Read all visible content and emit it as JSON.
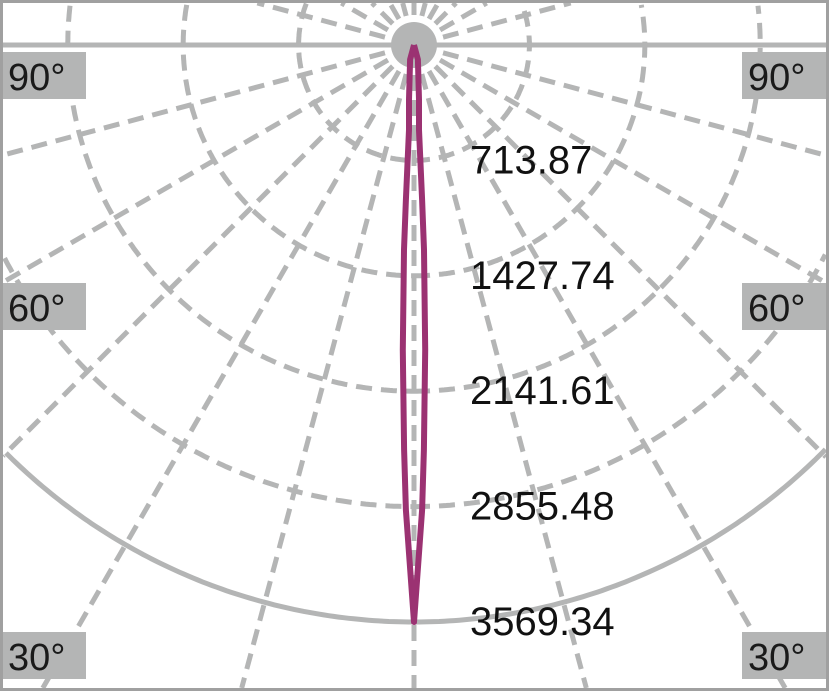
{
  "chart_data": {
    "type": "polar-line",
    "title": "",
    "radial_ticks": [
      713.87,
      1427.74,
      2141.61,
      2855.48,
      3569.34
    ],
    "radial_tick_labels": [
      "713.87",
      "1427.74",
      "2141.61",
      "2855.48",
      "3569.34"
    ],
    "rmax": 3569.34,
    "angle_labels": {
      "left": [
        "90°",
        "60°",
        "30°"
      ],
      "right": [
        "90°",
        "60°",
        "30°"
      ]
    },
    "angle_grid_step_deg": 15,
    "grid": true,
    "series": [
      {
        "angles_deg": [
          0,
          0.5,
          1.0,
          1.4,
          2.1,
          2.8,
          3.0,
          3.4,
          5.2,
          15,
          90
        ],
        "values": [
          3569.34,
          3186,
          2877,
          2505,
          1887,
          1268,
          959,
          526,
          340,
          93,
          0
        ],
        "color": "#9b3272",
        "symmetric": true
      }
    ],
    "colors": {
      "grid": "#b4b5b5",
      "frame": "#a0a0a0",
      "curve": "#9b3272"
    }
  }
}
